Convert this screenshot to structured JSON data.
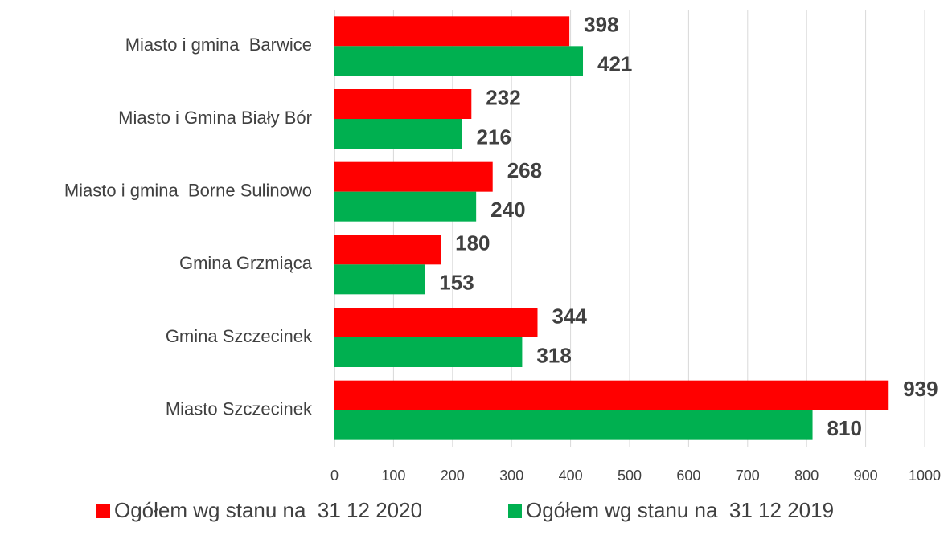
{
  "chart_data": {
    "type": "bar",
    "orientation": "horizontal",
    "categories": [
      "Miasto i gmina  Barwice",
      "Miasto i Gmina Biały Bór",
      "Miasto i gmina  Borne Sulinowo",
      "Gmina Grzmiąca",
      "Gmina Szczecinek",
      "Miasto Szczecinek"
    ],
    "series": [
      {
        "name": "Ogółem wg stanu na  31 12 2020",
        "color": "#ff0000",
        "values": [
          398,
          232,
          268,
          180,
          344,
          939
        ]
      },
      {
        "name": "Ogółem wg stanu na  31 12 2019",
        "color": "#00b050",
        "values": [
          421,
          216,
          240,
          153,
          318,
          810
        ]
      }
    ],
    "xlim": [
      0,
      1000
    ],
    "xticks": [
      0,
      100,
      200,
      300,
      400,
      500,
      600,
      700,
      800,
      900,
      1000
    ],
    "grid": true,
    "legend": "bottom"
  }
}
